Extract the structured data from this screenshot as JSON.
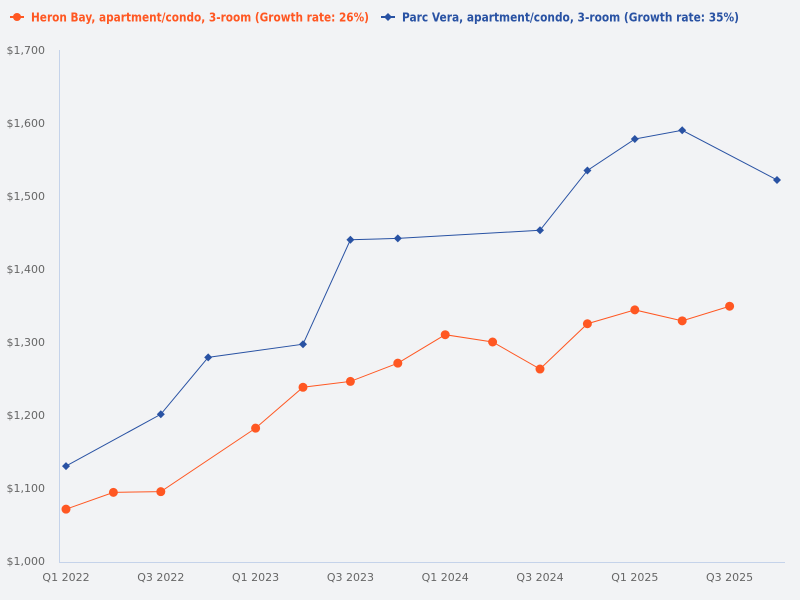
{
  "chart_data": {
    "type": "line",
    "title": "",
    "xlabel": "",
    "ylabel": "",
    "ylim": [
      1000,
      1700
    ],
    "yticks": [
      "$1,000",
      "$1,100",
      "$1,200",
      "$1,300",
      "$1,400",
      "$1,500",
      "$1,600",
      "$1,700"
    ],
    "ytick_values": [
      1000,
      1100,
      1200,
      1300,
      1400,
      1500,
      1600,
      1700
    ],
    "x": [
      "Q1 2022",
      "Q2 2022",
      "Q3 2022",
      "Q4 2022",
      "Q1 2023",
      "Q2 2023",
      "Q3 2023",
      "Q4 2023",
      "Q1 2024",
      "Q2 2024",
      "Q3 2024",
      "Q4 2024",
      "Q1 2025",
      "Q2 2025",
      "Q3 2025",
      "Q4 2025"
    ],
    "xtick_labels": [
      "Q1 2022",
      "Q3 2022",
      "Q1 2023",
      "Q3 2023",
      "Q1 2024",
      "Q3 2024",
      "Q1 2025",
      "Q3 2025"
    ],
    "grid": false,
    "legend_position": "top-left",
    "series": [
      {
        "name": "Heron Bay, apartment/condo, 3-room (Growth rate: 26%)",
        "color": "#ff5722",
        "marker": "circle",
        "values": [
          1071,
          1094,
          1095,
          null,
          1182,
          1238,
          1246,
          1271,
          1310,
          1300,
          1263,
          1325,
          1344,
          1329,
          1349,
          null
        ]
      },
      {
        "name": "Parc Vera, apartment/condo, 3-room (Growth rate: 35%)",
        "color": "#2952a3",
        "marker": "diamond",
        "values": [
          1130,
          null,
          1201,
          1279,
          null,
          1297,
          1440,
          1442,
          null,
          null,
          1453,
          1535,
          1578,
          1590,
          null,
          1522
        ]
      }
    ]
  }
}
